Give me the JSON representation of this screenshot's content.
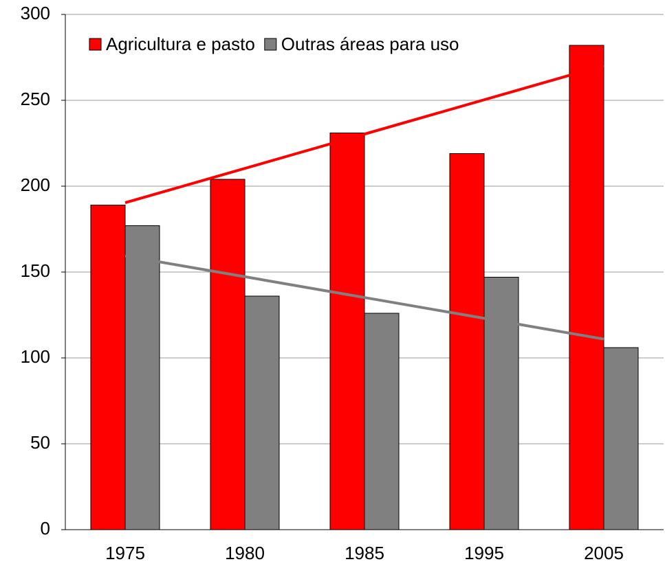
{
  "chart_data": {
    "type": "bar",
    "categories": [
      "1975",
      "1980",
      "1985",
      "1995",
      "2005"
    ],
    "series": [
      {
        "name": "Agricultura e pasto",
        "color": "#ff0000",
        "values": [
          189,
          204,
          231,
          219,
          282
        ]
      },
      {
        "name": "Outras áreas para uso",
        "color": "#808080",
        "values": [
          177,
          136,
          126,
          147,
          106
        ]
      }
    ],
    "ylim": [
      0,
      300
    ],
    "yticks": [
      0,
      50,
      100,
      150,
      200,
      250,
      300
    ],
    "grid": true,
    "trendline": true,
    "legend": "top-left"
  }
}
